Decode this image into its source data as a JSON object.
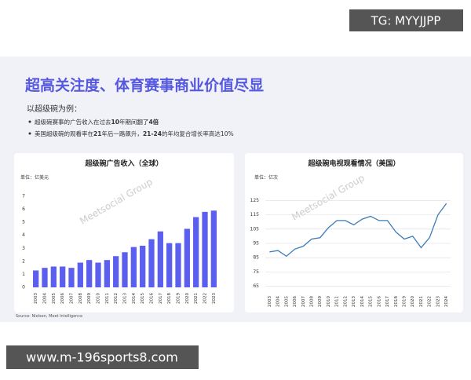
{
  "badge": "TG: MYYJJPP",
  "header": {
    "title": "超高关注度、体育赛事商业价值尽显",
    "lead": "以超级碗为例："
  },
  "bullets": [
    {
      "pre": "超级碗赛事的广告收入在过去",
      "b1": "10",
      "mid": "年期间翻了",
      "b2": "4倍",
      "post": ""
    },
    {
      "pre": "美国超级碗的观看率在",
      "b1": "21",
      "mid": "年后一路飙升，",
      "b2": "21-24",
      "post": "的年均复合增长率高达10%"
    }
  ],
  "watermark": "Meetsocial Group",
  "source": "Source: Nielsen, Meet Intelligence",
  "footer": "www.m-196sports8.com",
  "chart_data": [
    {
      "type": "bar",
      "title": "超级碗广告收入（全球）",
      "unit": "单位：亿美元",
      "color": "#5b5ff0",
      "categories": [
        "2003",
        "2004",
        "2005",
        "2006",
        "2007",
        "2008",
        "2009",
        "2010",
        "2011",
        "2012",
        "2013",
        "2014",
        "2015",
        "2016",
        "2017",
        "2018",
        "2019",
        "2020",
        "2021",
        "2022",
        "2023"
      ],
      "values": [
        1.3,
        1.5,
        1.6,
        1.6,
        1.5,
        1.9,
        2.1,
        1.9,
        2.1,
        2.4,
        2.7,
        3.1,
        3.2,
        3.7,
        4.3,
        3.4,
        3.4,
        4.5,
        5.4,
        5.8,
        5.9
      ],
      "ylim": [
        0,
        7
      ],
      "yticks": [
        0,
        1,
        2,
        3,
        4,
        5,
        6,
        7
      ]
    },
    {
      "type": "line",
      "title": "超级碗电视观看情况（美国）",
      "unit": "单位：亿次",
      "color": "#3b7bb8",
      "categories": [
        "2003",
        "2004",
        "2005",
        "2006",
        "2007",
        "2008",
        "2009",
        "2010",
        "2011",
        "2012",
        "2013",
        "2014",
        "2015",
        "2016",
        "2017",
        "2018",
        "2019",
        "2020",
        "2021",
        "2022",
        "2023",
        "2024"
      ],
      "values": [
        89,
        90,
        86,
        91,
        93,
        98,
        99,
        106,
        111,
        111,
        108,
        112,
        114,
        111,
        111,
        103,
        98,
        100,
        92,
        99,
        115,
        123
      ],
      "ylim": [
        62,
        128
      ],
      "yticks": [
        65,
        75,
        85,
        95,
        105,
        115,
        125
      ],
      "grid": true,
      "grid_color": "#dcdce6"
    }
  ]
}
